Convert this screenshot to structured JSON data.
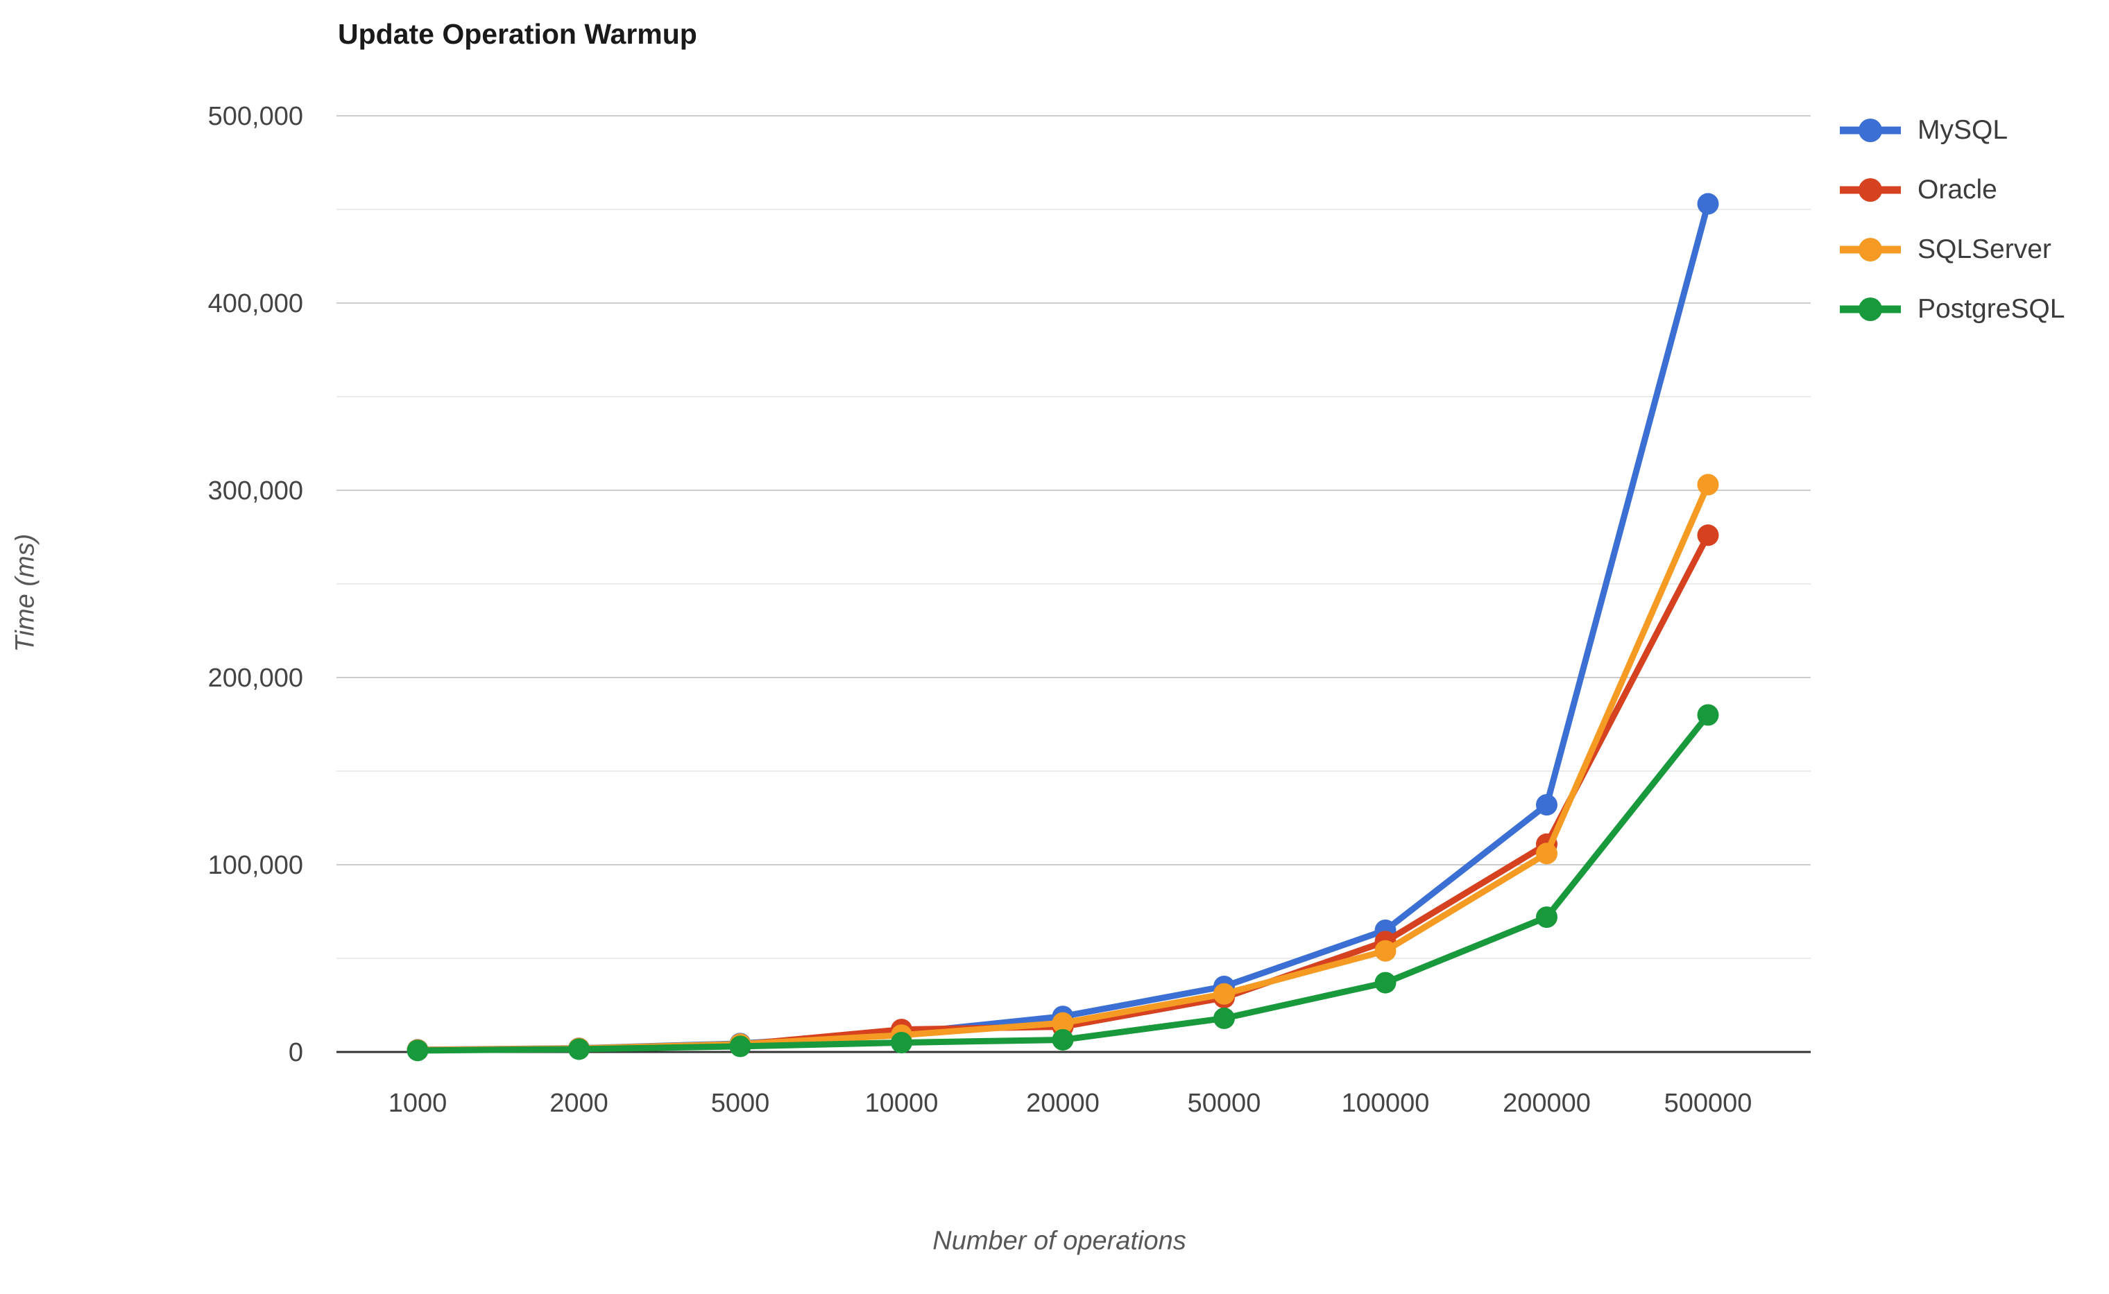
{
  "chart_data": {
    "type": "line",
    "title": "Update Operation Warmup",
    "xlabel": "Number of operations",
    "ylabel": "Time (ms)",
    "categories": [
      "1000",
      "2000",
      "5000",
      "10000",
      "20000",
      "50000",
      "100000",
      "200000",
      "500000"
    ],
    "series": [
      {
        "name": "MySQL",
        "color": "#3b6fd4",
        "values": [
          1200,
          2000,
          4500,
          10000,
          19000,
          35000,
          65000,
          132000,
          453000
        ]
      },
      {
        "name": "Oracle",
        "color": "#d6411f",
        "values": [
          1000,
          1800,
          4000,
          12000,
          13500,
          29000,
          59000,
          111000,
          276000
        ]
      },
      {
        "name": "SQLServer",
        "color": "#f59b23",
        "values": [
          1100,
          1900,
          4200,
          9000,
          15500,
          31000,
          54000,
          106000,
          303000
        ]
      },
      {
        "name": "PostgreSQL",
        "color": "#189a3c",
        "values": [
          800,
          1500,
          3000,
          5000,
          6500,
          18000,
          37000,
          72000,
          180000
        ]
      }
    ],
    "ylim": [
      0,
      500000
    ],
    "y_ticks": [
      {
        "value": 0,
        "label": "0"
      },
      {
        "value": 100000,
        "label": "100,000"
      },
      {
        "value": 200000,
        "label": "200,000"
      },
      {
        "value": 300000,
        "label": "300,000"
      },
      {
        "value": 400000,
        "label": "400,000"
      },
      {
        "value": 500000,
        "label": "500,000"
      }
    ],
    "y_minor_tick_values": [
      50000,
      150000,
      250000,
      350000,
      450000
    ],
    "grid": true,
    "legend_position": "right",
    "colors": {
      "background": "#ffffff",
      "grid_major": "#cccccc",
      "grid_minor": "#ebebeb",
      "axis_baseline": "#333333",
      "tick_label": "#444444",
      "axis_title": "#575757",
      "title": "#1a1a1a",
      "legend_label": "#3c3c3c"
    }
  }
}
